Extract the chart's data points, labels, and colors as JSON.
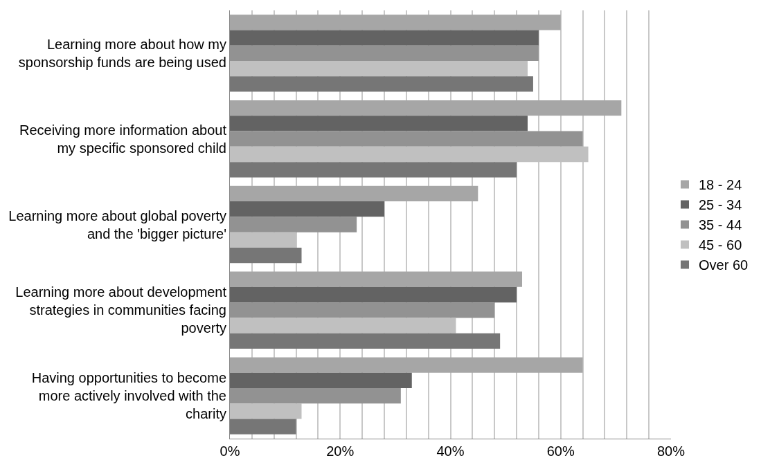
{
  "chart_data": {
    "type": "bar",
    "orientation": "horizontal",
    "categories": [
      "Learning more about how my sponsorship funds are being used",
      "Receiving more information about my specific sponsored child",
      "Learning more about global poverty and the 'bigger picture'",
      "Learning more about development strategies in communities facing poverty",
      "Having opportunities to become more actively involved with the charity"
    ],
    "series": [
      {
        "name": "18 - 24",
        "color": "#a6a6a6",
        "values": [
          60,
          71,
          45,
          53,
          64
        ]
      },
      {
        "name": "25 - 34",
        "color": "#636363",
        "values": [
          56,
          54,
          28,
          52,
          33
        ]
      },
      {
        "name": "35 - 44",
        "color": "#929292",
        "values": [
          56,
          64,
          23,
          48,
          31
        ]
      },
      {
        "name": "45 - 60",
        "color": "#c0c0c0",
        "values": [
          54,
          65,
          12,
          41,
          13
        ]
      },
      {
        "name": "Over 60",
        "color": "#767676",
        "values": [
          55,
          52,
          13,
          49,
          12
        ]
      }
    ],
    "xlim": [
      0,
      80
    ],
    "xticks": [
      {
        "value": 0,
        "label": "0%"
      },
      {
        "value": 4,
        "label": null
      },
      {
        "value": 8,
        "label": null
      },
      {
        "value": 12,
        "label": null
      },
      {
        "value": 16,
        "label": null
      },
      {
        "value": 20,
        "label": "20%"
      },
      {
        "value": 24,
        "label": null
      },
      {
        "value": 28,
        "label": null
      },
      {
        "value": 32,
        "label": null
      },
      {
        "value": 36,
        "label": null
      },
      {
        "value": 40,
        "label": "40%"
      },
      {
        "value": 44,
        "label": null
      },
      {
        "value": 48,
        "label": null
      },
      {
        "value": 52,
        "label": null
      },
      {
        "value": 56,
        "label": null
      },
      {
        "value": 60,
        "label": "60%"
      },
      {
        "value": 64,
        "label": null
      },
      {
        "value": 68,
        "label": null
      },
      {
        "value": 72,
        "label": null
      },
      {
        "value": 76,
        "label": null
      },
      {
        "value": 80,
        "label": "80%"
      }
    ],
    "grid": "x",
    "legend": "right"
  }
}
